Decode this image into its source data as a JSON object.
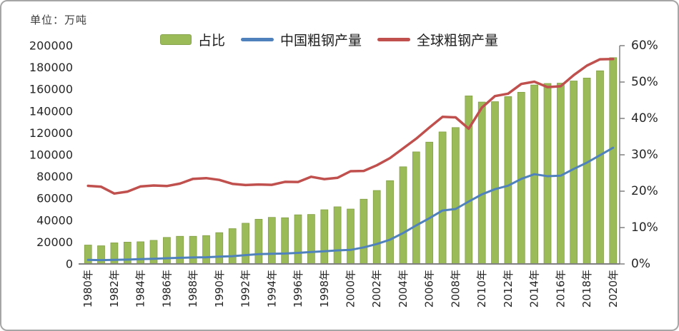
{
  "unit_label": "单位：万吨",
  "legend": [
    {
      "label": "占比",
      "type": "bar",
      "color": "#9BBB59"
    },
    {
      "label": "中国粗钢产量",
      "type": "line",
      "color": "#4F81BD"
    },
    {
      "label": "全球粗钢产量",
      "type": "line",
      "color": "#C0504D"
    }
  ],
  "chart_data": {
    "type": "bar",
    "subtype": "combo-bar-line",
    "legend_position": "top",
    "grid": false,
    "x": [
      1980,
      1981,
      1982,
      1983,
      1984,
      1985,
      1986,
      1987,
      1988,
      1989,
      1990,
      1991,
      1992,
      1993,
      1994,
      1995,
      1996,
      1997,
      1998,
      1999,
      2000,
      2001,
      2002,
      2003,
      2004,
      2005,
      2006,
      2007,
      2008,
      2009,
      2010,
      2011,
      2012,
      2013,
      2014,
      2015,
      2016,
      2017,
      2018,
      2019,
      2020
    ],
    "x_tick_labels": [
      "1980年",
      "1982年",
      "1984年",
      "1986年",
      "1988年",
      "1990年",
      "1992年",
      "1994年",
      "1996年",
      "1998年",
      "2000年",
      "2002年",
      "2004年",
      "2006年",
      "2008年",
      "2010年",
      "2012年",
      "2014年",
      "2016年",
      "2018年",
      "2020年"
    ],
    "series": [
      {
        "name": "占比",
        "type": "bar",
        "axis": "right",
        "color": "#9BBB59",
        "values": [
          5.2,
          5.0,
          5.8,
          6.0,
          6.1,
          6.5,
          7.3,
          7.6,
          7.6,
          7.8,
          8.6,
          9.7,
          11.2,
          12.3,
          12.8,
          12.7,
          13.5,
          13.6,
          14.9,
          15.7,
          15.1,
          17.8,
          20.2,
          22.9,
          26.7,
          30.8,
          33.5,
          36.3,
          37.5,
          46.2,
          44.5,
          44.6,
          46.0,
          47.2,
          49.2,
          49.6,
          49.7,
          50.3,
          51.1,
          53.1,
          56.7
        ]
      },
      {
        "name": "中国粗钢产量",
        "type": "line",
        "axis": "left",
        "color": "#4F81BD",
        "values": [
          3712,
          3560,
          3716,
          4002,
          4347,
          4679,
          5221,
          5628,
          5943,
          6159,
          6635,
          7100,
          8094,
          8956,
          9261,
          9536,
          10124,
          10891,
          11559,
          12426,
          12850,
          15163,
          18237,
          22234,
          28291,
          35324,
          41915,
          48929,
          50306,
          57218,
          63723,
          68528,
          71716,
          77904,
          82231,
          80383,
          80837,
          87074,
          92826,
          99634,
          106477
        ]
      },
      {
        "name": "全球粗钢产量",
        "type": "line",
        "axis": "left",
        "color": "#C0504D",
        "values": [
          71600,
          70700,
          64500,
          66300,
          71000,
          71900,
          71400,
          73600,
          78000,
          78600,
          77000,
          73400,
          72300,
          72800,
          72500,
          75200,
          75100,
          79900,
          77700,
          78900,
          85000,
          85200,
          90400,
          97000,
          105900,
          114800,
          125000,
          134800,
          134300,
          123900,
          143300,
          153800,
          156000,
          164900,
          167000,
          162000,
          162800,
          173000,
          181700,
          187500,
          187800
        ]
      }
    ],
    "left_axis": {
      "min": 0,
      "max": 200000,
      "step": 20000,
      "unit": "万吨",
      "tick_labels": [
        "0",
        "20000",
        "40000",
        "60000",
        "80000",
        "100000",
        "120000",
        "140000",
        "160000",
        "180000",
        "200000"
      ]
    },
    "right_axis": {
      "min": 0,
      "max": 60,
      "step": 10,
      "format": "percent",
      "tick_labels": [
        "0%",
        "10%",
        "20%",
        "30%",
        "40%",
        "50%",
        "60%"
      ]
    }
  },
  "colors": {
    "axis_line": "#808080",
    "tick_text": "#262626",
    "bar_border": "#7f9a41"
  }
}
